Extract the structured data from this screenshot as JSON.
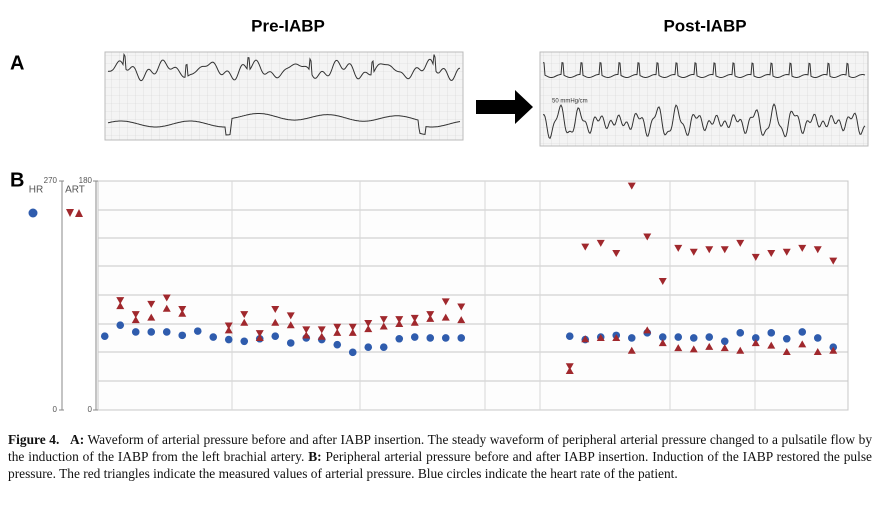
{
  "figure": {
    "panel_a_label": "A",
    "panel_b_label": "B",
    "pre_title": "Pre-IABP",
    "post_title": "Post-IABP",
    "post_scale_note": "50 mmHg/cm"
  },
  "chart_data": {
    "type": "scatter",
    "categories": [
      null,
      null,
      null,
      null,
      null,
      null,
      null,
      null,
      null,
      null,
      null,
      null,
      null,
      null,
      null,
      null,
      null,
      null,
      null,
      null,
      null,
      null,
      null,
      null,
      null,
      null,
      null,
      null,
      null,
      null,
      null,
      null,
      null,
      null,
      null,
      null,
      null,
      null,
      null,
      null,
      null,
      null,
      null,
      null,
      null,
      null,
      null,
      null
    ],
    "ylim": [
      0,
      180
    ],
    "yticks": [
      0,
      180
    ],
    "y2lim": [
      0,
      270
    ],
    "y2ticks": [
      0,
      270
    ],
    "series": [
      {
        "name": "HR",
        "axis": "y2",
        "color": "#2f5cad",
        "values": [
          87,
          100,
          92,
          92,
          92,
          88,
          93,
          86,
          83,
          81,
          84,
          87,
          79,
          85,
          83,
          77,
          68,
          74,
          74,
          84,
          86,
          85,
          85,
          85,
          null,
          null,
          null,
          null,
          null,
          null,
          87,
          83,
          86,
          88,
          85,
          91,
          86,
          86,
          85,
          86,
          81,
          91,
          85,
          91,
          84,
          92,
          85,
          74
        ]
      },
      {
        "name": "ART",
        "color": "#a0282d",
        "values": [
          null,
          86,
          75,
          83,
          88,
          79,
          null,
          null,
          66,
          75,
          60,
          79,
          74,
          63,
          63,
          65,
          65,
          68,
          71,
          71,
          72,
          75,
          85,
          81,
          null,
          null,
          null,
          null,
          null,
          null,
          34,
          128,
          131,
          123,
          176,
          136,
          101,
          127,
          124,
          126,
          126,
          131,
          120,
          123,
          124,
          127,
          126,
          117
        ],
        "low": [
          null,
          82,
          71,
          73,
          80,
          76,
          null,
          null,
          63,
          69,
          57,
          69,
          67,
          59,
          58,
          61,
          61,
          64,
          66,
          68,
          69,
          72,
          73,
          71,
          null,
          null,
          null,
          null,
          null,
          null,
          31,
          56,
          57,
          57,
          47,
          63,
          53,
          49,
          48,
          50,
          49,
          47,
          53,
          51,
          46,
          52,
          46,
          47
        ]
      }
    ]
  },
  "caption": {
    "figure_label": "Figure 4.",
    "a_label": "A:",
    "a_text": "Waveform of arterial pressure before and after IABP insertion. The steady waveform of peripheral arterial pressure changed to a pulsatile flow by the induction of the IABP from the left brachial artery.",
    "b_label": "B:",
    "b_text": "Peripheral arterial pressure before and after IABP insertion. Induction of the IABP restored the pulse pressure. The red triangles indicate the measured values of arterial pressure. Blue circles indicate the heart rate of the patient."
  }
}
